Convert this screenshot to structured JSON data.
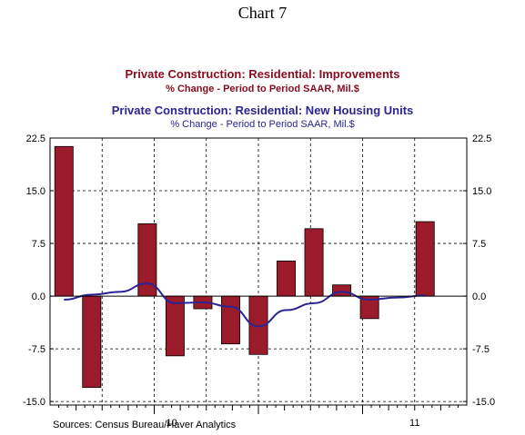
{
  "chart_title": "Chart 7",
  "source": "Sources:  Census Bureau/Haver Analytics",
  "chart_data": {
    "type": "bar",
    "series": [
      {
        "name": "Private Construction: Residential: Improvements",
        "subtitle": "% Change - Period to Period     SAAR, Mil.$",
        "render": "bar",
        "color": "#9b1b2a",
        "values": [
          21.3,
          -13.0,
          null,
          10.3,
          -8.5,
          -1.8,
          -6.8,
          -8.3,
          5.0,
          9.6,
          1.6,
          -3.2,
          null,
          10.6
        ]
      },
      {
        "name": "Private Construction: Residential: New Housing Units",
        "subtitle": "% Change - Period to Period     SAAR, Mil.$",
        "render": "line",
        "color": "#2b2494",
        "values": [
          -0.5,
          0.2,
          0.6,
          1.8,
          -1.0,
          -0.9,
          -1.5,
          -4.3,
          -2.0,
          -1.0,
          0.6,
          -0.5,
          -0.2,
          0.1
        ]
      }
    ],
    "y_ticks": [
      "22.5",
      "15.0",
      "7.5",
      "0.0",
      "-7.5",
      "-15.0"
    ],
    "y_tick_values": [
      22.5,
      15.0,
      7.5,
      0.0,
      -7.5,
      -15.0
    ],
    "ylim": [
      -15.5,
      22.5
    ],
    "x_labels": [
      {
        "label": "10",
        "month_index": 14
      },
      {
        "label": "11",
        "month_index": 42
      }
    ],
    "x_months": 48,
    "grid": true,
    "grid_style": "dashed"
  }
}
